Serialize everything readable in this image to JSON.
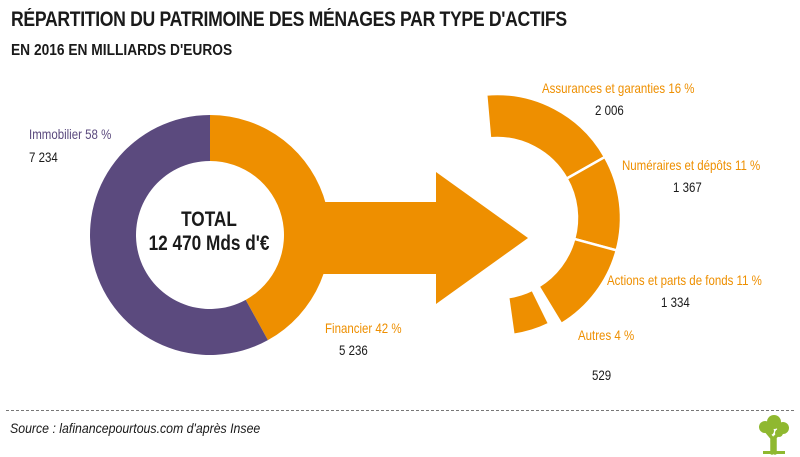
{
  "header": {
    "title": "RÉPARTITION DU PATRIMOINE DES MÉNAGES PAR TYPE D'ACTIFS",
    "subtitle": "EN 2016 EN MILLIARDS D'EUROS"
  },
  "center": {
    "title": "TOTAL",
    "value": "12 470 Mds d'€"
  },
  "footer": {
    "source": "Source : lafinancepourtous.com d'après Insee",
    "logo_icon": "tree-icon"
  },
  "colors": {
    "orange": "#ee8f00",
    "purple": "#5b4a7e",
    "text": "#1a1a1a"
  },
  "chart_data": [
    {
      "type": "pie",
      "variant": "donut",
      "total_label": "12 470 Mds d'€",
      "slices": [
        {
          "label": "Immobilier 58 %",
          "percent": 58,
          "value": 7234,
          "value_label": "7 234",
          "color": "#5b4a7e"
        },
        {
          "label": "Financier 42 %",
          "percent": 42,
          "value": 5236,
          "value_label": "5 236",
          "color": "#ee8f00"
        }
      ]
    },
    {
      "type": "pie",
      "variant": "partial-donut breakdown of Financier",
      "slices": [
        {
          "label": "Assurances et garanties 16 %",
          "percent": 16,
          "value": 2006,
          "value_label": "2 006",
          "color": "#ee8f00"
        },
        {
          "label": "Numéraires et dépôts 11 %",
          "percent": 11,
          "value": 1367,
          "value_label": "1 367",
          "color": "#ee8f00"
        },
        {
          "label": "Actions et parts de fonds 11 %",
          "percent": 11,
          "value": 1334,
          "value_label": "1 334",
          "color": "#ee8f00"
        },
        {
          "label": "Autres 4 %",
          "percent": 4,
          "value": 529,
          "value_label": "529",
          "color": "#ee8f00"
        }
      ]
    }
  ]
}
